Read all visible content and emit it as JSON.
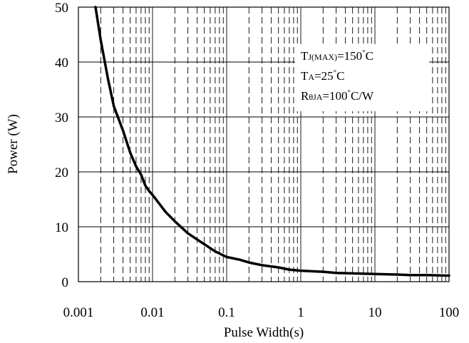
{
  "chart_data": {
    "type": "line",
    "xlabel": "Pulse Width(s)",
    "ylabel": "Power (W)",
    "xscale": "log",
    "xlim": [
      0.001,
      100
    ],
    "ylim": [
      0,
      50
    ],
    "xticks": [
      "0.001",
      "0.01",
      "0.1",
      "1",
      "10",
      "100"
    ],
    "yticks": [
      "0",
      "10",
      "20",
      "30",
      "40",
      "50"
    ],
    "grid": true,
    "minor_grid_style": "dashed",
    "line_color": "#000000",
    "series": [
      {
        "x": [
          0.0017,
          0.002,
          0.0025,
          0.003,
          0.004,
          0.005,
          0.006,
          0.007,
          0.008,
          0.009,
          0.01,
          0.015,
          0.02,
          0.03,
          0.05,
          0.07,
          0.1,
          0.15,
          0.2,
          0.3,
          0.5,
          0.7,
          1,
          2,
          3,
          5,
          10,
          20,
          30,
          50,
          100
        ],
        "y": [
          50,
          44,
          37,
          32,
          27.5,
          23.5,
          21,
          19.5,
          17.5,
          16.5,
          15.8,
          12.7,
          11,
          8.8,
          6.8,
          5.5,
          4.5,
          4,
          3.5,
          3,
          2.6,
          2.2,
          2,
          1.8,
          1.6,
          1.5,
          1.4,
          1.3,
          1.2,
          1.2,
          1.1
        ]
      }
    ],
    "annotations": {
      "tj_prefix": "T",
      "tj_sub": "J(MAX)",
      "tj_value": "=150",
      "ta_prefix": "T",
      "ta_sub": "A",
      "ta_value": "=25",
      "deg": "°",
      "unit_c": "C",
      "r_prefix": "R",
      "r_sub": "θJA",
      "r_value": "=100",
      "r_unit": "C/W"
    }
  }
}
